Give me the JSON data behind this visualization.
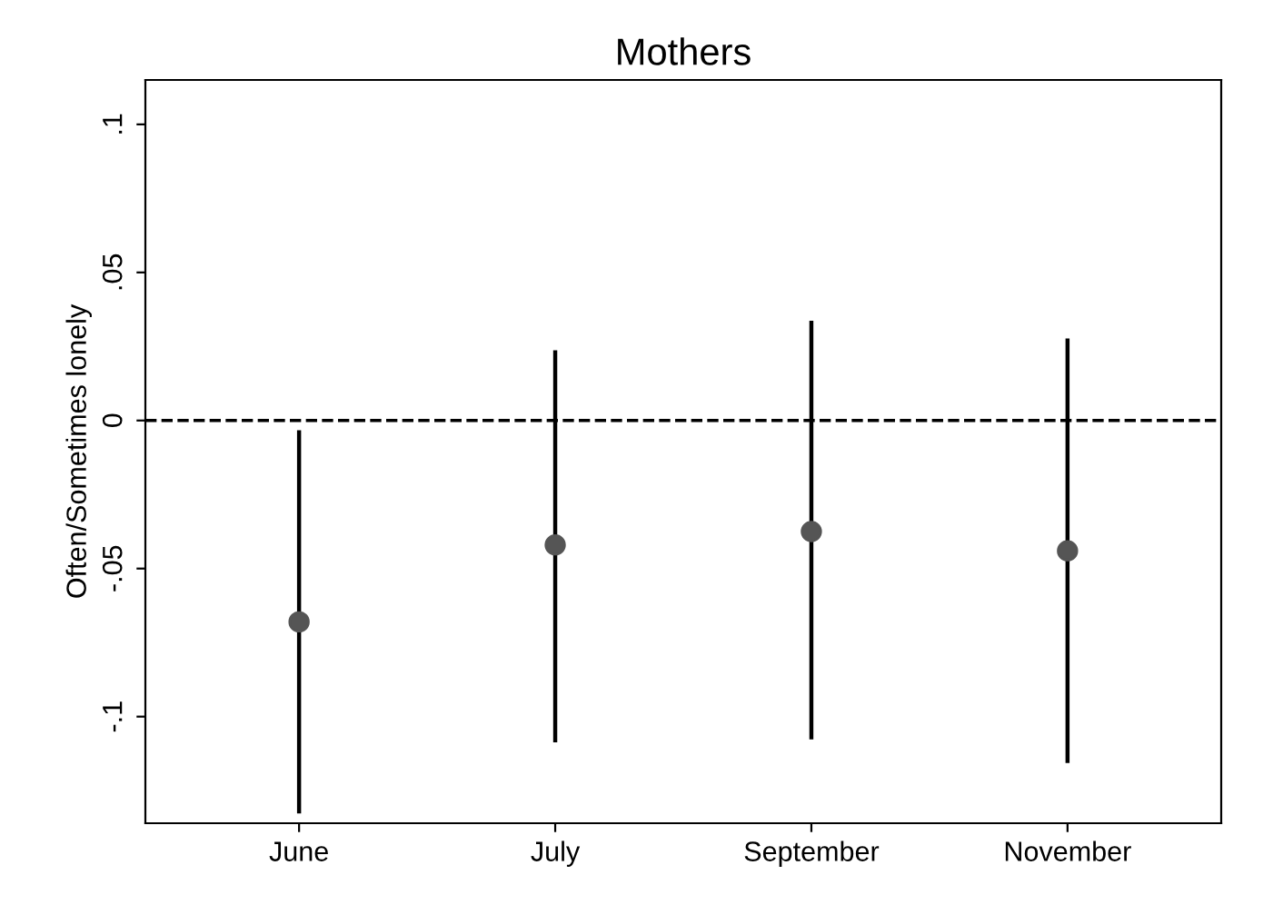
{
  "chart_data": {
    "type": "scatter",
    "title": "Mothers",
    "ylabel": "Often/Sometimes lonely",
    "categories": [
      "June",
      "July",
      "September",
      "November"
    ],
    "series": [
      {
        "color": "#555555",
        "values": [
          -0.068,
          -0.042,
          -0.0375,
          -0.044
        ],
        "errors": [
          [
            -0.132,
            -0.004
          ],
          [
            -0.108,
            0.023
          ],
          [
            -0.107,
            0.033
          ],
          [
            -0.115,
            0.027
          ]
        ]
      }
    ],
    "ylim": [
      -0.136,
      0.115
    ],
    "yticks": [
      {
        "value": 0.1,
        "label": ".1"
      },
      {
        "value": 0.05,
        "label": ".05"
      },
      {
        "value": 0,
        "label": "0"
      },
      {
        "value": -0.05,
        "label": "-.05"
      },
      {
        "value": -0.1,
        "label": "-.1"
      }
    ],
    "ref_lines": [
      {
        "axis": "y",
        "value": 0,
        "line_style": "dashed",
        "color": "#000000"
      }
    ],
    "marker": "circle",
    "grid": false,
    "legend": false
  }
}
